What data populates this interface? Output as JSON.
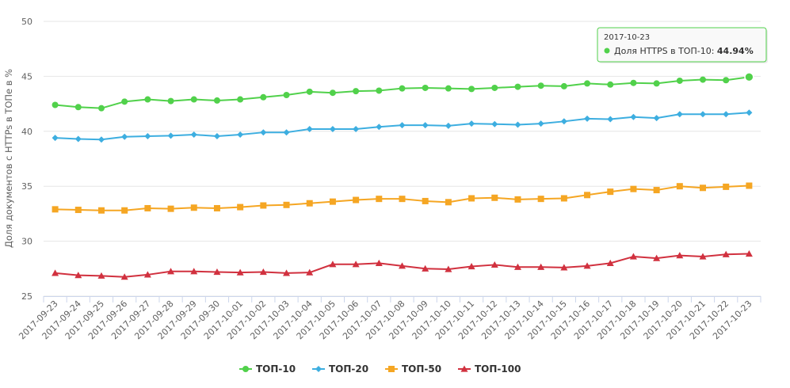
{
  "chart_data": {
    "type": "line",
    "ylabel": "Доля документов с HTTPs в ТОПе в %",
    "xlabel": "",
    "ylim": [
      25,
      50
    ],
    "yticks": [
      "25",
      "30",
      "35",
      "40",
      "45",
      "50"
    ],
    "grid": "horizontal",
    "legend_position": "bottom-center",
    "categories": [
      "2017-09-23",
      "2017-09-24",
      "2017-09-25",
      "2017-09-26",
      "2017-09-27",
      "2017-09-28",
      "2017-09-29",
      "2017-09-30",
      "2017-10-01",
      "2017-10-02",
      "2017-10-03",
      "2017-10-04",
      "2017-10-05",
      "2017-10-06",
      "2017-10-07",
      "2017-10-08",
      "2017-10-09",
      "2017-10-10",
      "2017-10-11",
      "2017-10-12",
      "2017-10-13",
      "2017-10-14",
      "2017-10-15",
      "2017-10-16",
      "2017-10-17",
      "2017-10-18",
      "2017-10-19",
      "2017-10-20",
      "2017-10-21",
      "2017-10-22",
      "2017-10-23"
    ],
    "series": [
      {
        "name": "ТОП-10",
        "color": "#51d14b",
        "marker": "circle",
        "values": [
          42.4,
          42.2,
          42.1,
          42.7,
          42.9,
          42.75,
          42.9,
          42.8,
          42.9,
          43.1,
          43.3,
          43.6,
          43.5,
          43.65,
          43.7,
          43.9,
          43.95,
          43.9,
          43.85,
          43.95,
          44.05,
          44.15,
          44.1,
          44.35,
          44.25,
          44.4,
          44.35,
          44.6,
          44.7,
          44.65,
          44.94
        ]
      },
      {
        "name": "ТОП-20",
        "color": "#3daee0",
        "marker": "diamond",
        "values": [
          39.4,
          39.3,
          39.25,
          39.5,
          39.55,
          39.6,
          39.7,
          39.55,
          39.7,
          39.9,
          39.9,
          40.2,
          40.2,
          40.2,
          40.4,
          40.55,
          40.55,
          40.5,
          40.7,
          40.65,
          40.6,
          40.7,
          40.9,
          41.15,
          41.1,
          41.3,
          41.2,
          41.55,
          41.55,
          41.55,
          41.7
        ]
      },
      {
        "name": "ТОП-50",
        "color": "#f5a623",
        "marker": "square",
        "values": [
          32.9,
          32.85,
          32.8,
          32.8,
          33.0,
          32.95,
          33.05,
          33.0,
          33.1,
          33.25,
          33.3,
          33.45,
          33.6,
          33.75,
          33.85,
          33.85,
          33.65,
          33.55,
          33.9,
          33.95,
          33.8,
          33.85,
          33.9,
          34.2,
          34.5,
          34.75,
          34.65,
          35.0,
          34.85,
          34.95,
          35.05
        ]
      },
      {
        "name": "ТОП-100",
        "color": "#d1313f",
        "marker": "triangle",
        "values": [
          27.1,
          26.9,
          26.85,
          26.75,
          26.95,
          27.25,
          27.25,
          27.2,
          27.15,
          27.2,
          27.1,
          27.15,
          27.9,
          27.9,
          28.0,
          27.75,
          27.5,
          27.45,
          27.7,
          27.85,
          27.65,
          27.65,
          27.6,
          27.75,
          28.0,
          28.6,
          28.45,
          28.7,
          28.6,
          28.8,
          28.85
        ]
      }
    ],
    "tooltip": {
      "date": "2017-10-23",
      "label": "Доля HTTPS в ТОП-10:",
      "value": "44.94%",
      "series": "ТОП-10",
      "border_color": "#51d14b"
    }
  }
}
